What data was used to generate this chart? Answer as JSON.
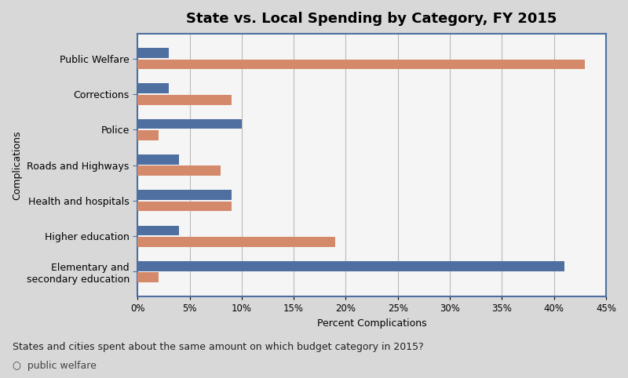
{
  "title": "State vs. Local Spending by Category, FY 2015",
  "xlabel": "Percent Complications",
  "ylabel": "Complications",
  "categories": [
    "Public Welfare",
    "Corrections",
    "Police",
    "Roads and Highways",
    "Health and hospitals",
    "Higher education",
    "Elementary and\nsecondary education"
  ],
  "state_values": [
    3,
    3,
    10,
    4,
    9,
    4,
    41
  ],
  "local_values": [
    43,
    9,
    2,
    8,
    9,
    19,
    2
  ],
  "state_color": "#4f6fa0",
  "local_color": "#d4896a",
  "xlim": [
    0,
    45
  ],
  "xtick_labels": [
    "0%",
    "5%",
    "10%",
    "15%",
    "20%",
    "25%",
    "30%",
    "35%",
    "40%",
    "45%"
  ],
  "xtick_values": [
    0,
    5,
    10,
    15,
    20,
    25,
    30,
    35,
    40,
    45
  ],
  "bar_height": 0.28,
  "figure_bg": "#d8d8d8",
  "plot_bg": "#f5f5f5",
  "border_color": "#4f6fa0",
  "title_fontsize": 13,
  "label_fontsize": 9,
  "tick_fontsize": 8.5,
  "bottom_text": "States and cities spent about the same amount on which budget category in 2015?",
  "bottom_text2": "○  public welfare"
}
